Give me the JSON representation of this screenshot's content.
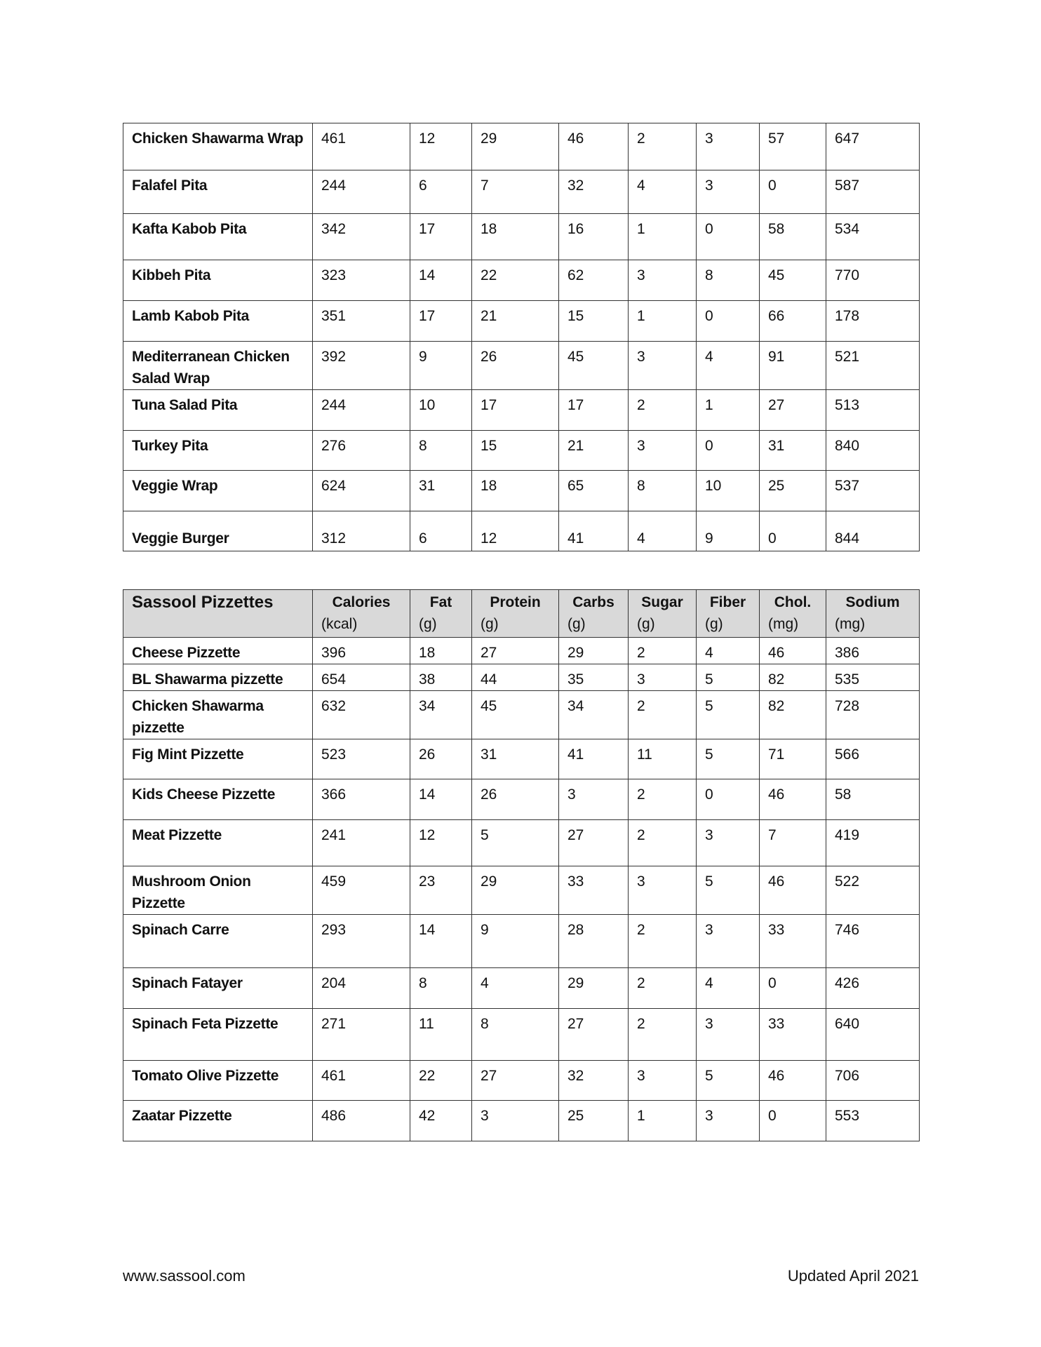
{
  "table1": {
    "rows": [
      [
        "Chicken Shawarma Wrap",
        "461",
        "12",
        "29",
        "46",
        "2",
        "3",
        "57",
        "647"
      ],
      [
        "Falafel Pita",
        "244",
        "6",
        "7",
        "32",
        "4",
        "3",
        "0",
        "587"
      ],
      [
        "Kafta Kabob Pita",
        "342",
        "17",
        "18",
        "16",
        "1",
        "0",
        "58",
        "534"
      ],
      [
        "Kibbeh Pita",
        "323",
        "14",
        "22",
        "62",
        "3",
        "8",
        "45",
        "770"
      ],
      [
        "Lamb Kabob Pita",
        "351",
        "17",
        "21",
        "15",
        "1",
        "0",
        "66",
        "178"
      ],
      [
        "Mediterranean Chicken Salad Wrap",
        "392",
        "9",
        "26",
        "45",
        "3",
        "4",
        "91",
        "521"
      ],
      [
        "Tuna Salad Pita",
        "244",
        "10",
        "17",
        "17",
        "2",
        "1",
        "27",
        "513"
      ],
      [
        "Turkey Pita",
        "276",
        "8",
        "15",
        "21",
        "3",
        "0",
        "31",
        "840"
      ],
      [
        "Veggie Wrap",
        "624",
        "31",
        "18",
        "65",
        "8",
        "10",
        "25",
        "537"
      ],
      [
        "Veggie Burger",
        "312",
        "6",
        "12",
        "41",
        "4",
        "9",
        "0",
        "844"
      ]
    ]
  },
  "table2": {
    "title": "Sassool Pizzettes",
    "headers": [
      {
        "label": "Calories",
        "unit": "(kcal)"
      },
      {
        "label": "Fat",
        "unit": "(g)"
      },
      {
        "label": "Protein",
        "unit": "(g)"
      },
      {
        "label": "Carbs",
        "unit": "(g)"
      },
      {
        "label": "Sugar",
        "unit": "(g)"
      },
      {
        "label": "Fiber",
        "unit": "(g)"
      },
      {
        "label": "Chol.",
        "unit": "(mg)"
      },
      {
        "label": "Sodium",
        "unit": "(mg)"
      }
    ],
    "rows": [
      [
        "Cheese Pizzette",
        "396",
        "18",
        "27",
        "29",
        "2",
        "4",
        "46",
        "386"
      ],
      [
        "BL Shawarma pizzette",
        "654",
        "38",
        "44",
        "35",
        "3",
        "5",
        "82",
        "535"
      ],
      [
        "Chicken Shawarma pizzette",
        "632",
        "34",
        "45",
        "34",
        "2",
        "5",
        "82",
        "728"
      ],
      [
        "Fig Mint Pizzette",
        "523",
        "26",
        "31",
        "41",
        "11",
        "5",
        "71",
        "566"
      ],
      [
        "Kids Cheese Pizzette",
        "366",
        "14",
        "26",
        "3",
        "2",
        "0",
        "46",
        "58"
      ],
      [
        "Meat Pizzette",
        "241",
        "12",
        "5",
        "27",
        "2",
        "3",
        "7",
        "419"
      ],
      [
        "Mushroom Onion Pizzette",
        "459",
        "23",
        "29",
        "33",
        "3",
        "5",
        "46",
        "522"
      ],
      [
        "Spinach Carre",
        "293",
        "14",
        "9",
        "28",
        "2",
        "3",
        "33",
        "746"
      ],
      [
        "Spinach Fatayer",
        "204",
        "8",
        "4",
        "29",
        "2",
        "4",
        "0",
        "426"
      ],
      [
        "Spinach Feta Pizzette",
        "271",
        "11",
        "8",
        "27",
        "2",
        "3",
        "33",
        "640"
      ],
      [
        "Tomato Olive Pizzette",
        "461",
        "22",
        "27",
        "32",
        "3",
        "5",
        "46",
        "706"
      ],
      [
        "Zaatar Pizzette",
        "486",
        "42",
        "3",
        "25",
        "1",
        "3",
        "0",
        "553"
      ]
    ]
  },
  "footer": {
    "website": "www.sassool.com",
    "updated": "Updated April 2021"
  }
}
